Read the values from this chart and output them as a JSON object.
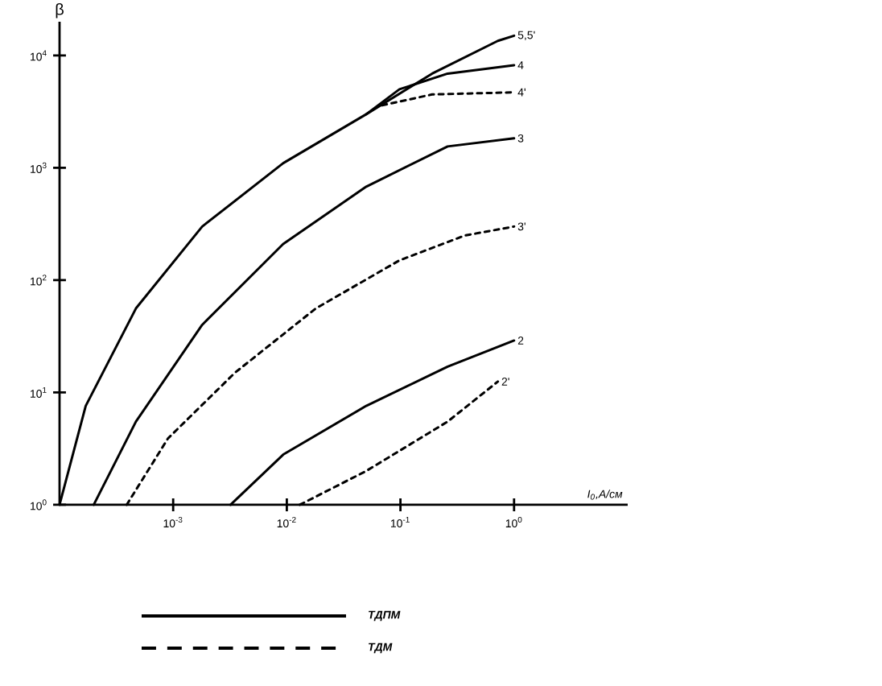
{
  "chart_data": {
    "type": "line",
    "xlabel": "I$_{0}$,A/см",
    "ylabel": "β",
    "log": "xy",
    "xlim": [
      0.0001,
      10
    ],
    "ylim": [
      1,
      20000
    ],
    "xticks": [
      {
        "value": 0.001,
        "label": "10$^{-3}$"
      },
      {
        "value": 0.01,
        "label": "10$^{-2}$"
      },
      {
        "value": 0.1,
        "label": "10$^{-1}$"
      },
      {
        "value": 1,
        "label": "10$^{0}$"
      }
    ],
    "yticks": [
      {
        "value": 1,
        "label": "10$^{0}$"
      },
      {
        "value": 10,
        "label": "10$^{1}$"
      },
      {
        "value": 100,
        "label": "10$^{2}$"
      },
      {
        "value": 1000,
        "label": "10$^{3}$"
      },
      {
        "value": 10000,
        "label": "10$^{4}$"
      }
    ],
    "annotations": [
      "ТДПМ",
      "ТДМ"
    ],
    "series": [
      {
        "name": "5,5'",
        "color": "#000000",
        "line_style": "solid",
        "x": [
          0.0001,
          0.00017,
          0.00047,
          0.0018,
          0.0093,
          0.05,
          0.19,
          0.72,
          1
        ],
        "values": [
          1,
          7.6,
          56,
          300,
          1100,
          3000,
          6900,
          13500,
          15000
        ]
      },
      {
        "name": "4",
        "color": "#000000",
        "line_style": "solid",
        "x": [
          0.05,
          0.098,
          0.26,
          1
        ],
        "values": [
          3000,
          5000,
          6900,
          8200
        ]
      },
      {
        "name": "4'",
        "color": "#000000",
        "line_style": "dashed",
        "x": [
          0.069,
          0.19,
          1
        ],
        "values": [
          3600,
          4500,
          4700
        ]
      },
      {
        "name": "3",
        "color": "#000000",
        "line_style": "solid",
        "x": [
          0.0002,
          0.00047,
          0.0018,
          0.0093,
          0.05,
          0.26,
          1
        ],
        "values": [
          1,
          5.5,
          40,
          210,
          680,
          1550,
          1830
        ]
      },
      {
        "name": "3'",
        "color": "#000000",
        "line_style": "dashed",
        "x": [
          0.00039,
          0.0009,
          0.0035,
          0.018,
          0.098,
          0.37,
          1
        ],
        "values": [
          1,
          3.9,
          15,
          56,
          150,
          250,
          300
        ]
      },
      {
        "name": "2",
        "color": "#000000",
        "line_style": "solid",
        "x": [
          0.0032,
          0.0093,
          0.05,
          0.26,
          1
        ],
        "values": [
          1,
          2.8,
          7.6,
          17,
          29
        ]
      },
      {
        "name": "2'",
        "color": "#000000",
        "line_style": "dashed",
        "x": [
          0.013,
          0.05,
          0.26,
          0.72
        ],
        "values": [
          1,
          2,
          5.5,
          12.5
        ]
      }
    ]
  }
}
